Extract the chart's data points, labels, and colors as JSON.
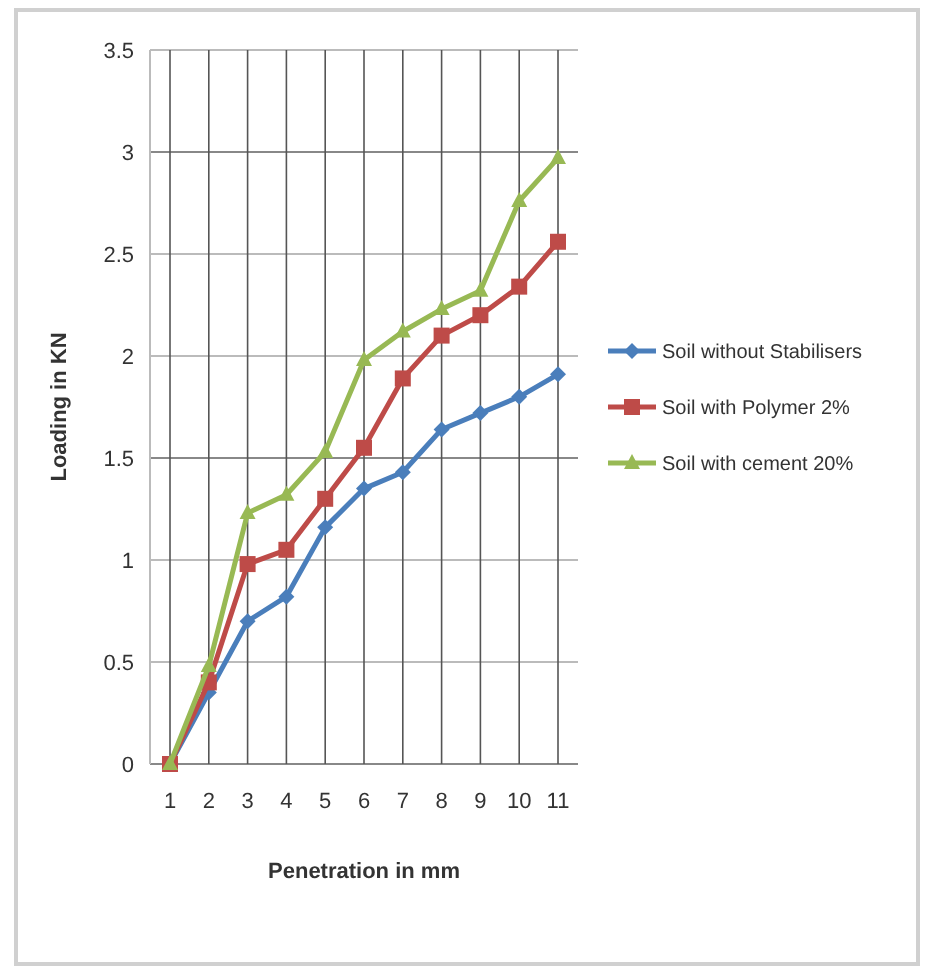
{
  "chart_data": {
    "type": "line",
    "xlabel": "Penetration in mm",
    "ylabel": "Loading in KN",
    "categories": [
      "1",
      "2",
      "3",
      "4",
      "5",
      "6",
      "7",
      "8",
      "9",
      "10",
      "11"
    ],
    "series": [
      {
        "name": "Soil without Stabilisers",
        "color": "#4a7ebb",
        "marker": "diamond",
        "values": [
          0,
          0.35,
          0.7,
          0.82,
          1.16,
          1.35,
          1.43,
          1.64,
          1.72,
          1.8,
          1.91
        ]
      },
      {
        "name": "Soil with Polymer 2%",
        "color": "#be4b48",
        "marker": "square",
        "values": [
          0,
          0.4,
          0.98,
          1.05,
          1.3,
          1.55,
          1.89,
          2.1,
          2.2,
          2.34,
          2.56
        ]
      },
      {
        "name": "Soil with cement 20%",
        "color": "#98b954",
        "marker": "triangle",
        "values": [
          0,
          0.48,
          1.23,
          1.32,
          1.53,
          1.98,
          2.12,
          2.23,
          2.32,
          2.76,
          2.97
        ]
      }
    ],
    "ylim": [
      0,
      3.5
    ],
    "yticks": [
      0,
      0.5,
      1,
      1.5,
      2,
      2.5,
      3,
      3.5
    ],
    "grid": true,
    "legend": "right"
  }
}
